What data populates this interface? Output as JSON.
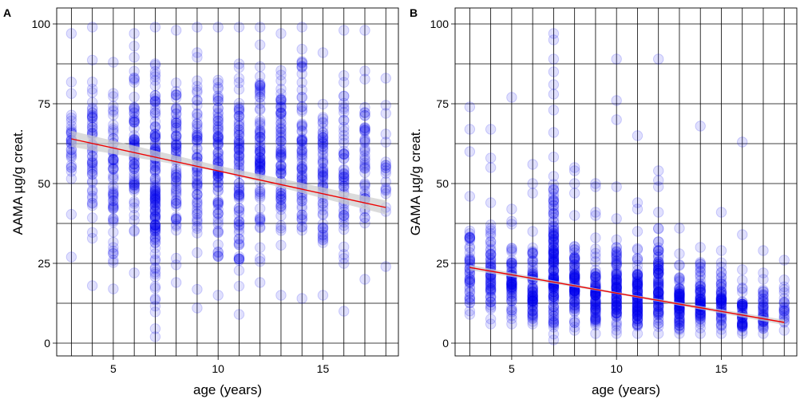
{
  "chart_data": [
    {
      "type": "scatter",
      "panel_label": "A",
      "xlabel": "age (years)",
      "ylabel": "AAMA µg/g creat.",
      "xlim": [
        2.3,
        18.6
      ],
      "ylim": [
        -4,
        105
      ],
      "xticks": [
        5,
        10,
        15
      ],
      "yticks": [
        0,
        25,
        50,
        75,
        100
      ],
      "grid": true,
      "point_color": "#0000ee",
      "point_opacity": 0.12,
      "ages": [
        3,
        4,
        5,
        6,
        7,
        8,
        9,
        10,
        11,
        12,
        13,
        14,
        15,
        16,
        17,
        18
      ],
      "columns": [
        {
          "x": 3,
          "y_range": [
            27,
            97
          ],
          "n": 30
        },
        {
          "x": 4,
          "y_range": [
            18,
            99
          ],
          "n": 55
        },
        {
          "x": 5,
          "y_range": [
            17,
            88
          ],
          "n": 60
        },
        {
          "x": 6,
          "y_range": [
            22,
            97
          ],
          "n": 70
        },
        {
          "x": 7,
          "y_range": [
            2,
            99
          ],
          "n": 140
        },
        {
          "x": 8,
          "y_range": [
            19,
            98
          ],
          "n": 75
        },
        {
          "x": 9,
          "y_range": [
            11,
            99
          ],
          "n": 70
        },
        {
          "x": 10,
          "y_range": [
            15,
            99
          ],
          "n": 90
        },
        {
          "x": 11,
          "y_range": [
            9,
            99
          ],
          "n": 90
        },
        {
          "x": 12,
          "y_range": [
            19,
            99
          ],
          "n": 85
        },
        {
          "x": 13,
          "y_range": [
            15,
            97
          ],
          "n": 80
        },
        {
          "x": 14,
          "y_range": [
            14,
            99
          ],
          "n": 75
        },
        {
          "x": 15,
          "y_range": [
            15,
            91
          ],
          "n": 65
        },
        {
          "x": 16,
          "y_range": [
            10,
            98
          ],
          "n": 55
        },
        {
          "x": 17,
          "y_range": [
            20,
            98
          ],
          "n": 45
        },
        {
          "x": 18,
          "y_range": [
            24,
            83
          ],
          "n": 18
        }
      ],
      "regression": {
        "x": [
          3,
          18
        ],
        "y": [
          64,
          42.5
        ],
        "color": "#ee0000"
      },
      "ci_band": {
        "x": [
          3,
          10,
          18
        ],
        "lower": [
          61.5,
          53.8,
          40.3
        ],
        "upper": [
          66.5,
          55.6,
          44.7
        ],
        "color": "#cccccc"
      }
    },
    {
      "type": "scatter",
      "panel_label": "B",
      "xlabel": "age (years)",
      "ylabel": "GAMA µg/g creat.",
      "xlim": [
        2.3,
        18.6
      ],
      "ylim": [
        -4,
        105
      ],
      "xticks": [
        5,
        10,
        15
      ],
      "yticks": [
        0,
        25,
        50,
        75,
        100
      ],
      "grid": true,
      "point_color": "#0000ee",
      "point_opacity": 0.12,
      "ages": [
        3,
        4,
        5,
        6,
        7,
        8,
        9,
        10,
        11,
        12,
        13,
        14,
        15,
        16,
        17,
        18
      ],
      "columns": [
        {
          "x": 3,
          "y_range": [
            9,
            46
          ],
          "n": 45,
          "outliers": [
            74,
            67,
            60
          ]
        },
        {
          "x": 4,
          "y_range": [
            6,
            44
          ],
          "n": 60,
          "outliers": [
            67,
            58,
            55
          ]
        },
        {
          "x": 5,
          "y_range": [
            6,
            42
          ],
          "n": 65,
          "outliers": [
            77
          ]
        },
        {
          "x": 6,
          "y_range": [
            6,
            35
          ],
          "n": 75,
          "outliers": [
            56,
            50,
            47
          ]
        },
        {
          "x": 7,
          "y_range": [
            1,
            66
          ],
          "n": 150,
          "outliers": [
            97,
            95,
            89,
            85,
            81,
            78,
            73
          ]
        },
        {
          "x": 8,
          "y_range": [
            4,
            40
          ],
          "n": 85,
          "outliers": [
            55,
            54,
            50,
            47
          ]
        },
        {
          "x": 9,
          "y_range": [
            3,
            33
          ],
          "n": 80,
          "outliers": [
            50,
            49,
            41,
            40
          ]
        },
        {
          "x": 10,
          "y_range": [
            3,
            39
          ],
          "n": 95,
          "outliers": [
            89,
            76,
            70,
            49
          ]
        },
        {
          "x": 11,
          "y_range": [
            3,
            35
          ],
          "n": 95,
          "outliers": [
            65,
            44,
            42
          ]
        },
        {
          "x": 12,
          "y_range": [
            3,
            41
          ],
          "n": 90,
          "outliers": [
            89,
            54,
            51,
            49
          ]
        },
        {
          "x": 13,
          "y_range": [
            3,
            28
          ],
          "n": 80,
          "outliers": [
            36
          ]
        },
        {
          "x": 14,
          "y_range": [
            3,
            30
          ],
          "n": 70,
          "outliers": [
            68
          ]
        },
        {
          "x": 15,
          "y_range": [
            3,
            29
          ],
          "n": 60,
          "outliers": [
            41
          ]
        },
        {
          "x": 16,
          "y_range": [
            3,
            23
          ],
          "n": 50,
          "outliers": [
            63,
            34
          ]
        },
        {
          "x": 17,
          "y_range": [
            3,
            22
          ],
          "n": 40,
          "outliers": [
            29
          ]
        },
        {
          "x": 18,
          "y_range": [
            4,
            26
          ],
          "n": 20,
          "outliers": []
        }
      ],
      "regression": {
        "x": [
          3,
          18
        ],
        "y": [
          23.7,
          6.5
        ],
        "color": "#ee0000"
      },
      "ci_band": {
        "x": [
          3,
          10,
          18
        ],
        "lower": [
          22.9,
          15.4,
          5.7
        ],
        "upper": [
          24.5,
          16.0,
          7.3
        ],
        "color": "#cccccc"
      }
    }
  ]
}
